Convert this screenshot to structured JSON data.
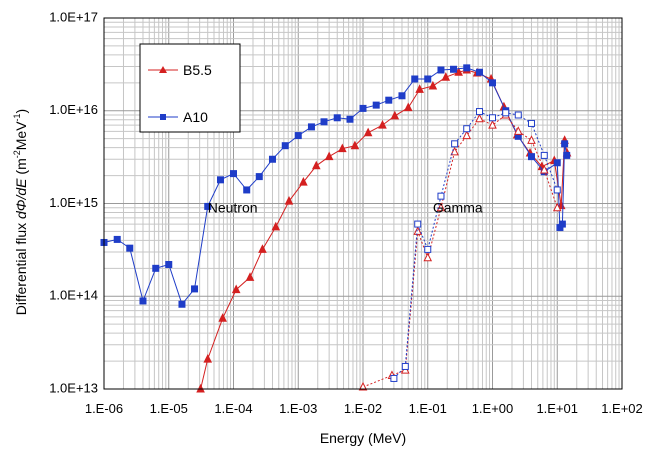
{
  "chart_data": {
    "type": "line",
    "xscale": "log",
    "yscale": "log",
    "xlim": [
      1e-06,
      100
    ],
    "ylim": [
      10000000000000.0,
      1e+17
    ],
    "grid": true,
    "legend_position": "top-left",
    "xlabel": "Energy (MeV)",
    "ylabel_prefix": "Differential flux ",
    "ylabel_italic": "dΦ/dE",
    "ylabel_unit_open": " (m",
    "ylabel_sup1": "-2",
    "ylabel_unit_mid": "MeV",
    "ylabel_sup2": "-1",
    "ylabel_unit_close": ")",
    "x_tick_labels": [
      "1.E-06",
      "1.E-05",
      "1.E-04",
      "1.E-03",
      "1.E-02",
      "1.E-01",
      "1.E+00",
      "1.E+01",
      "1.E+02"
    ],
    "y_tick_labels": [
      "1.0E+17",
      "1.0E+16",
      "1.0E+15",
      "1.0E+14",
      "1.0E+13"
    ],
    "annotations": [
      {
        "text": "Neutron",
        "x": 4e-05,
        "y": 800000000000000.0
      },
      {
        "text": "Gamma",
        "x": 0.12,
        "y": 800000000000000.0
      }
    ],
    "series": [
      {
        "name": "B5.5",
        "particle": "neutron",
        "color": "#d42020",
        "marker": "triangle",
        "filled": true,
        "line_style": "solid",
        "points": [
          [
            3.1e-05,
            10000000000000.0
          ],
          [
            4e-05,
            21000000000000.0
          ],
          [
            6.8e-05,
            58000000000000.0
          ],
          [
            0.00011,
            118000000000000.0
          ],
          [
            0.00018,
            160000000000000.0
          ],
          [
            0.00028,
            320000000000000.0
          ],
          [
            0.00045,
            560000000000000.0
          ],
          [
            0.00072,
            1060000000000000.0
          ],
          [
            0.0012,
            1700000000000000.0
          ],
          [
            0.0019,
            2550000000000000.0
          ],
          [
            0.003,
            3200000000000000.0
          ],
          [
            0.0048,
            3900000000000000.0
          ],
          [
            0.0075,
            4200000000000000.0
          ],
          [
            0.012,
            5800000000000000.0
          ],
          [
            0.02,
            7000000000000000.0
          ],
          [
            0.031,
            8800000000000000.0
          ],
          [
            0.05,
            1.08e+16
          ],
          [
            0.075,
            1.7e+16
          ],
          [
            0.12,
            1.85e+16
          ],
          [
            0.19,
            2.3e+16
          ],
          [
            0.3,
            2.6e+16
          ],
          [
            0.4,
            2.75e+16
          ],
          [
            0.58,
            2.55e+16
          ],
          [
            0.95,
            2.2e+16
          ],
          [
            1.5,
            1.1e+16
          ],
          [
            2.4,
            5500000000000000.0
          ],
          [
            3.8,
            3500000000000000.0
          ],
          [
            5.8,
            2500000000000000.0
          ],
          [
            9.0,
            2900000000000000.0
          ],
          [
            11.5,
            950000000000000.0
          ],
          [
            13.0,
            4800000000000000.0
          ],
          [
            14.2,
            3500000000000000.0
          ]
        ]
      },
      {
        "name": "A10",
        "particle": "neutron",
        "color": "#1f3dc8",
        "marker": "square",
        "filled": true,
        "line_style": "solid",
        "points": [
          [
            1e-06,
            380000000000000.0
          ],
          [
            1.6e-06,
            410000000000000.0
          ],
          [
            2.5e-06,
            330000000000000.0
          ],
          [
            4e-06,
            89000000000000.0
          ],
          [
            6.3e-06,
            200000000000000.0
          ],
          [
            1e-05,
            220000000000000.0
          ],
          [
            1.6e-05,
            82000000000000.0
          ],
          [
            2.5e-05,
            120000000000000.0
          ],
          [
            4e-05,
            930000000000000.0
          ],
          [
            6.3e-05,
            1800000000000000.0
          ],
          [
            0.0001,
            2100000000000000.0
          ],
          [
            0.00016,
            1400000000000000.0
          ],
          [
            0.00025,
            1950000000000000.0
          ],
          [
            0.0004,
            3000000000000000.0
          ],
          [
            0.00063,
            4200000000000000.0
          ],
          [
            0.001,
            5400000000000000.0
          ],
          [
            0.0016,
            6700000000000000.0
          ],
          [
            0.0025,
            7600000000000000.0
          ],
          [
            0.004,
            8400000000000000.0
          ],
          [
            0.0063,
            8100000000000000.0
          ],
          [
            0.01,
            1.06e+16
          ],
          [
            0.016,
            1.15e+16
          ],
          [
            0.025,
            1.3e+16
          ],
          [
            0.04,
            1.45e+16
          ],
          [
            0.063,
            2.2e+16
          ],
          [
            0.1,
            2.2e+16
          ],
          [
            0.16,
            2.75e+16
          ],
          [
            0.25,
            2.8e+16
          ],
          [
            0.4,
            2.9e+16
          ],
          [
            0.63,
            2.6e+16
          ],
          [
            1.0,
            2e+16
          ],
          [
            1.6,
            1e+16
          ],
          [
            2.5,
            5300000000000000.0
          ],
          [
            4.0,
            3200000000000000.0
          ],
          [
            6.3,
            2200000000000000.0
          ],
          [
            10.0,
            2750000000000000.0
          ],
          [
            11.0,
            550000000000000.0
          ],
          [
            12.0,
            600000000000000.0
          ],
          [
            13.0,
            4400000000000000.0
          ],
          [
            14.0,
            3300000000000000.0
          ]
        ]
      },
      {
        "name": "B5.5",
        "particle": "gamma",
        "color": "#d42020",
        "marker": "triangle",
        "filled": false,
        "line_style": "dashed",
        "points": [
          [
            0.01,
            10500000000000.0
          ],
          [
            0.028,
            14000000000000.0
          ],
          [
            0.045,
            16000000000000.0
          ],
          [
            0.07,
            500000000000000.0
          ],
          [
            0.1,
            260000000000000.0
          ],
          [
            0.16,
            900000000000000.0
          ],
          [
            0.26,
            3600000000000000.0
          ],
          [
            0.4,
            5400000000000000.0
          ],
          [
            0.63,
            8200000000000000.0
          ],
          [
            1.0,
            7000000000000000.0
          ],
          [
            1.6,
            9000000000000000.0
          ],
          [
            2.5,
            6000000000000000.0
          ],
          [
            4.0,
            4800000000000000.0
          ],
          [
            6.3,
            2300000000000000.0
          ],
          [
            10.0,
            900000000000000.0
          ]
        ]
      },
      {
        "name": "A10",
        "particle": "gamma",
        "color": "#1f3dc8",
        "marker": "square",
        "filled": false,
        "line_style": "dashed",
        "points": [
          [
            0.03,
            13000000000000.0
          ],
          [
            0.045,
            17500000000000.0
          ],
          [
            0.07,
            600000000000000.0
          ],
          [
            0.1,
            320000000000000.0
          ],
          [
            0.16,
            1200000000000000.0
          ],
          [
            0.26,
            4400000000000000.0
          ],
          [
            0.4,
            6400000000000000.0
          ],
          [
            0.63,
            9800000000000000.0
          ],
          [
            1.0,
            8400000000000000.0
          ],
          [
            1.6,
            9500000000000000.0
          ],
          [
            2.5,
            9000000000000000.0
          ],
          [
            4.0,
            7300000000000000.0
          ],
          [
            6.3,
            3300000000000000.0
          ],
          [
            10.0,
            1400000000000000.0
          ]
        ]
      }
    ]
  }
}
